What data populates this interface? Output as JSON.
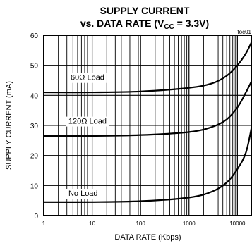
{
  "chart_data": {
    "type": "line",
    "title_line1": "SUPPLY CURRENT",
    "title_line2_prefix": "vs. DATA RATE (V",
    "title_line2_sub": "CC",
    "title_line2_suffix": " = 3.3V)",
    "figure_code": "toc01",
    "xlabel": "DATA RATE (Kbps)",
    "ylabel": "SUPPLY CURRENT (mA)",
    "x_scale": "log",
    "xlim": [
      1,
      20000
    ],
    "ylim": [
      0,
      60
    ],
    "x_ticks": [
      {
        "value": 1,
        "label": "1"
      },
      {
        "value": 10,
        "label": "10"
      },
      {
        "value": 100,
        "label": "100"
      },
      {
        "value": 1000,
        "label": "1000"
      },
      {
        "value": 10000,
        "label": "10000"
      }
    ],
    "y_ticks": [
      0,
      10,
      20,
      30,
      40,
      50,
      60
    ],
    "grid": true,
    "series": [
      {
        "name": "60Ω Load",
        "x": [
          1,
          10,
          100,
          1000,
          3000,
          6000,
          10000,
          15000,
          20000
        ],
        "y": [
          41,
          41,
          41.3,
          42.5,
          44,
          46.5,
          50,
          54,
          58
        ],
        "label_at": {
          "x": 8,
          "y": 46
        }
      },
      {
        "name": "120Ω Load",
        "x": [
          1,
          10,
          100,
          1000,
          3000,
          6000,
          10000,
          15000,
          20000
        ],
        "y": [
          26.5,
          26.5,
          26.8,
          27.8,
          29.5,
          32,
          36,
          41,
          45
        ],
        "label_at": {
          "x": 8,
          "y": 31.5
        }
      },
      {
        "name": "No Load",
        "x": [
          1,
          10,
          100,
          1000,
          3000,
          6000,
          10000,
          15000,
          20000
        ],
        "y": [
          4.5,
          4.5,
          4.8,
          6,
          8,
          11,
          15.5,
          21,
          30
        ],
        "label_at": {
          "x": 6.5,
          "y": 7.5
        }
      }
    ]
  }
}
